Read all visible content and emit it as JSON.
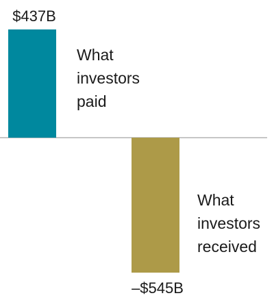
{
  "chart_data": {
    "type": "bar",
    "title": "",
    "xlabel": "",
    "ylabel": "",
    "unit": "$B",
    "ylim": [
      -545,
      437
    ],
    "grid": false,
    "legend": "none",
    "categories": [
      "What investors paid",
      "What investors received"
    ],
    "values": [
      437,
      -545
    ],
    "value_labels": [
      "$437B",
      "–$545B"
    ],
    "category_label_lines": [
      [
        "What",
        "investors",
        "paid"
      ],
      [
        "What",
        "investors",
        "received"
      ]
    ],
    "colors": [
      "#00889e",
      "#ad9a48"
    ],
    "baseline_color": "#b3b3b3"
  }
}
